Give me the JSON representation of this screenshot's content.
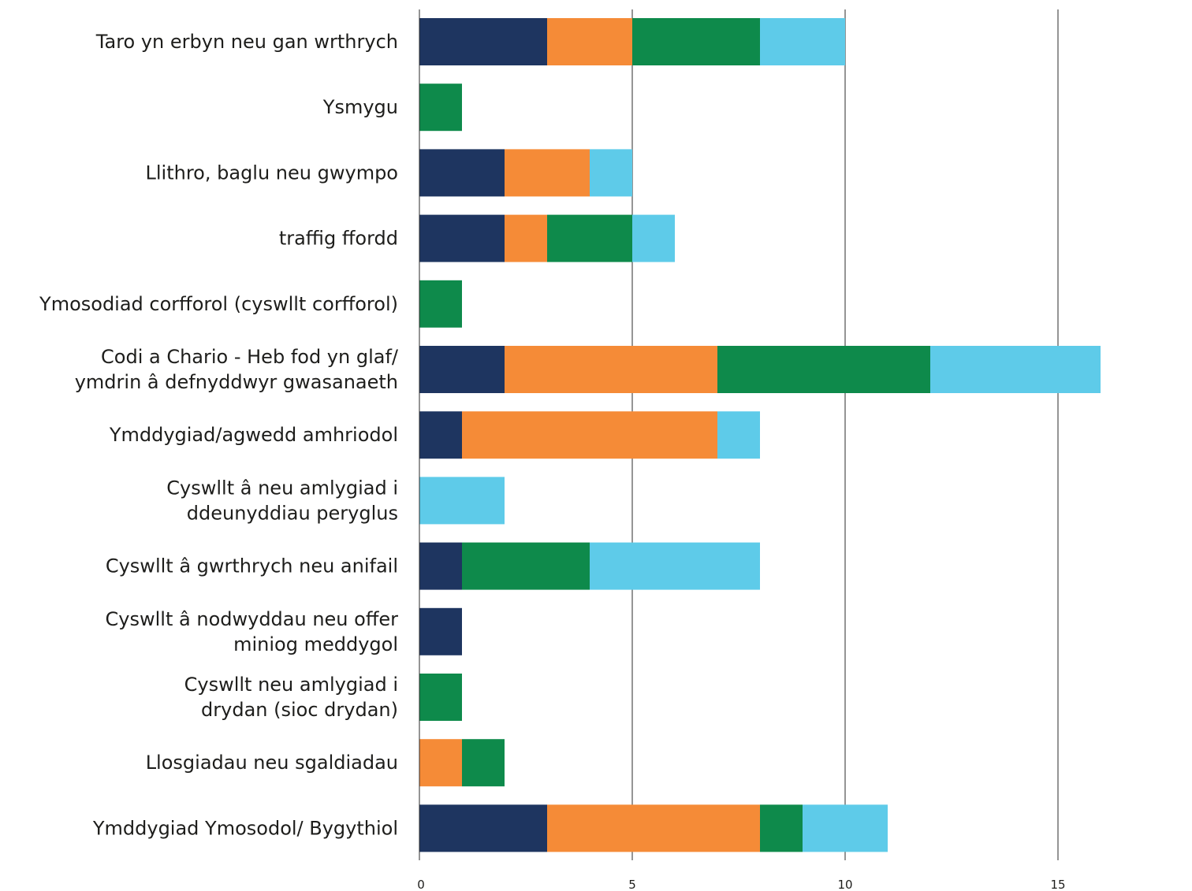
{
  "chart_data": {
    "type": "bar",
    "orientation": "horizontal",
    "stacked": true,
    "categories": [
      [
        "Taro yn erbyn neu gan wrthrych"
      ],
      [
        "Ysmygu"
      ],
      [
        "Llithro, baglu neu  gwympo"
      ],
      [
        "traffig ffordd"
      ],
      [
        "Ymosodiad corfforol (cyswllt corfforol)"
      ],
      [
        "Codi a Chario - Heb fod yn glaf/",
        "ymdrin â defnyddwyr gwasanaeth"
      ],
      [
        "Ymddygiad/agwedd amhriodol"
      ],
      [
        "Cyswllt â neu amlygiad i",
        "ddeunyddiau peryglus"
      ],
      [
        "Cyswllt â gwrthrych neu anifail"
      ],
      [
        "Cyswllt â nodwyddau neu offer",
        "miniog meddygol"
      ],
      [
        "Cyswllt neu amlygiad i",
        "drydan (sioc drydan)"
      ],
      [
        "Llosgiadau neu sgaldiadau"
      ],
      [
        "Ymddygiad Ymosodol/ Bygythiol"
      ]
    ],
    "series": [
      {
        "color": "#1e3560",
        "values": [
          3,
          0,
          2,
          2,
          0,
          2,
          1,
          0,
          1,
          1,
          0,
          0,
          3
        ]
      },
      {
        "color": "#f58b37",
        "values": [
          2,
          0,
          2,
          1,
          0,
          5,
          6,
          0,
          0,
          0,
          0,
          1,
          5
        ]
      },
      {
        "color": "#0e8a4b",
        "values": [
          3,
          1,
          0,
          2,
          1,
          5,
          0,
          0,
          3,
          0,
          1,
          1,
          1
        ]
      },
      {
        "color": "#5ecbe9",
        "values": [
          2,
          0,
          1,
          1,
          0,
          4,
          1,
          2,
          4,
          0,
          0,
          0,
          2
        ]
      }
    ],
    "x_ticks": [
      0,
      5,
      10,
      15
    ],
    "xlim": [
      0,
      18.2
    ],
    "grid": true,
    "legend": "none",
    "title": "",
    "xlabel": "",
    "ylabel": ""
  }
}
